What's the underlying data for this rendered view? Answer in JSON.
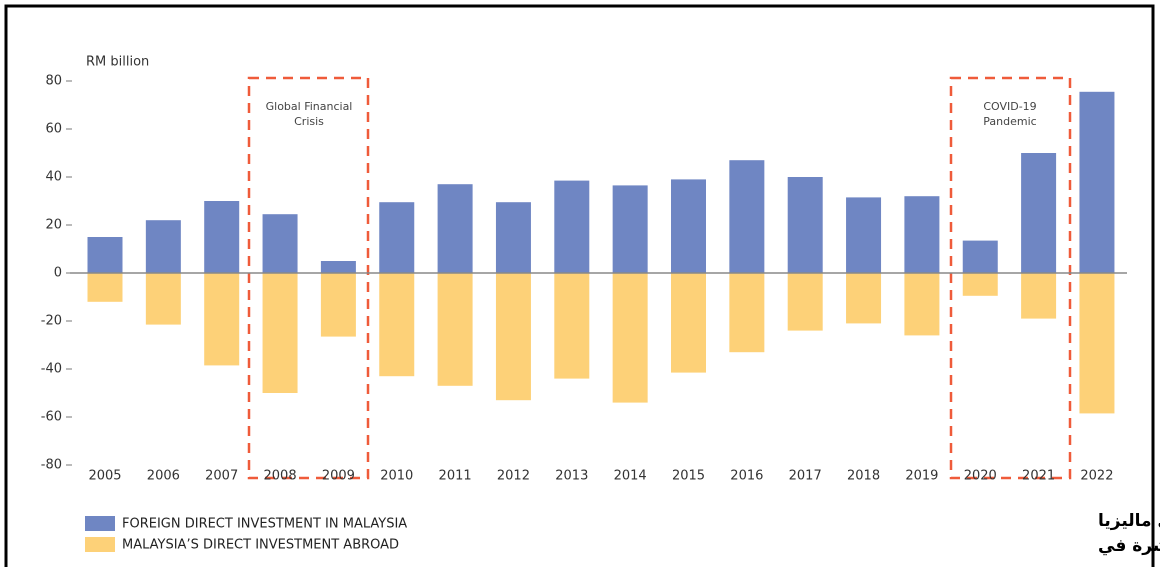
{
  "chart_data": {
    "type": "bar",
    "y_label": "RM billion",
    "categories": [
      "2005",
      "2006",
      "2007",
      "2008",
      "2009",
      "2010",
      "2011",
      "2012",
      "2013",
      "2014",
      "2015",
      "2016",
      "2017",
      "2018",
      "2019",
      "2020",
      "2021",
      "2022"
    ],
    "series": [
      {
        "name": "FOREIGN DIRECT INVESTMENT IN MALAYSIA",
        "color": "#6f86c3",
        "values": [
          15,
          22,
          30,
          24.5,
          5,
          29.5,
          37,
          29.5,
          38.5,
          36.5,
          39,
          47,
          40,
          31.5,
          32,
          13.5,
          50,
          75.5
        ]
      },
      {
        "name": "MALAYSIA’S DIRECT INVESTMENT ABROAD",
        "color": "#fdd178",
        "values": [
          -12,
          -21.5,
          -38.5,
          -50,
          -26.5,
          -43,
          -47,
          -53,
          -44,
          -54,
          -41.5,
          -33,
          -24,
          -21,
          -26,
          -9.5,
          -19,
          -58.5
        ]
      }
    ],
    "ylim": [
      -80,
      80
    ],
    "yticks": [
      -80,
      -60,
      -40,
      -20,
      0,
      20,
      40,
      60,
      80
    ],
    "grid": false,
    "legend": "bottom-left",
    "annotations": [
      {
        "lines": [
          "Global Financial",
          "Crisis"
        ]
      },
      {
        "lines": [
          "COVID-19",
          "Pandemic"
        ]
      }
    ],
    "arabic_caption": [
      "الاستثمار الأجنبي المباشر في ماليزيا",
      "الاستثمارات الماليزية المباشرة في"
    ]
  }
}
